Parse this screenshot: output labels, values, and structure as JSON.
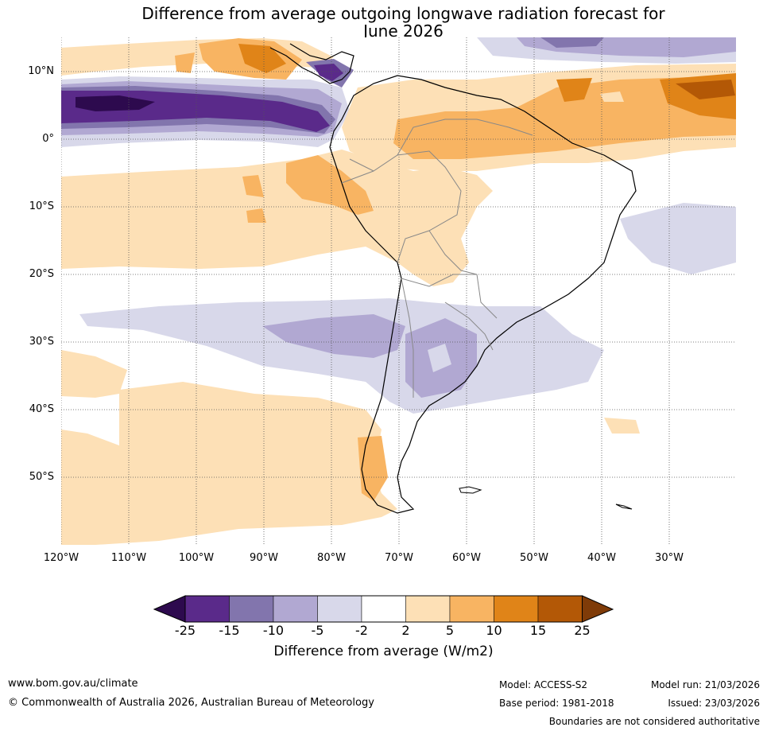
{
  "title_line1": "Difference from average outgoing longwave radiation forecast for",
  "title_line2": "June 2026",
  "lat_labels": [
    "10°N",
    "0°",
    "10°S",
    "20°S",
    "30°S",
    "40°S",
    "50°S"
  ],
  "lon_labels": [
    "120°W",
    "110°W",
    "100°W",
    "90°W",
    "80°W",
    "70°W",
    "60°W",
    "50°W",
    "40°W",
    "30°W"
  ],
  "colorbar": {
    "ticks": [
      "-25",
      "-15",
      "-10",
      "-5",
      "-2",
      "2",
      "5",
      "10",
      "15",
      "25"
    ],
    "colors": [
      "#2d0a4e",
      "#5a2a8a",
      "#8275ad",
      "#b1a8d2",
      "#d8d8ea",
      "#ffffff",
      "#fde0b6",
      "#f8b462",
      "#e08418",
      "#b35806",
      "#7f3b08"
    ],
    "title": "Difference from average (W/m2)"
  },
  "footer": {
    "website": "www.bom.gov.au/climate",
    "copyright": "© Commonwealth of Australia 2026, Australian Bureau of Meteorology",
    "model": "Model: ACCESS-S2",
    "base_period": "Base period: 1981-2018",
    "model_run": "Model run: 21/03/2026",
    "issued": "Issued: 23/03/2026",
    "disclaimer": "Boundaries are not considered authoritative"
  }
}
